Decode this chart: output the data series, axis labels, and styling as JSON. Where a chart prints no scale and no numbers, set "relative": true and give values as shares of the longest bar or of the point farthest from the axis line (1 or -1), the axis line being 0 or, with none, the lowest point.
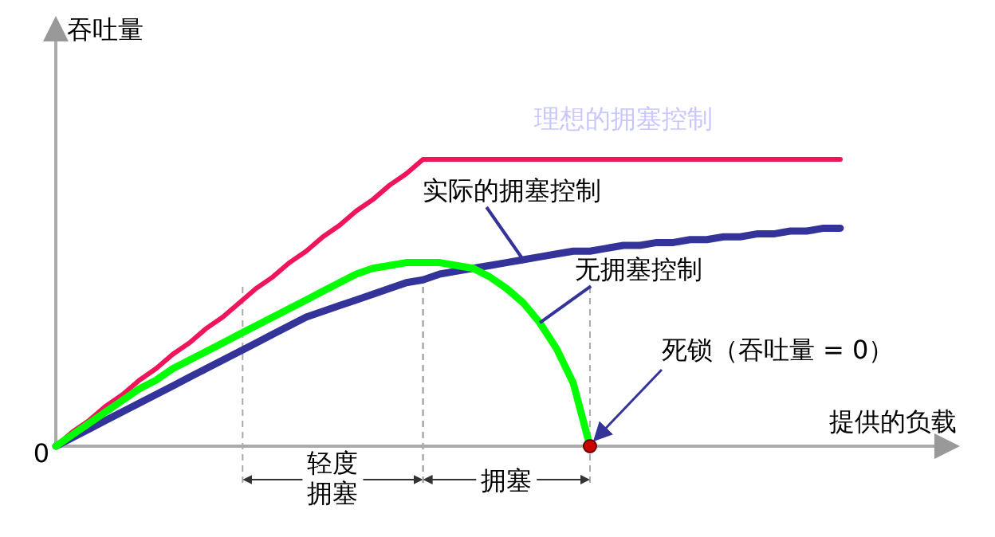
{
  "chart_data": {
    "type": "line",
    "relative": true,
    "xlabel": "提供的负载",
    "ylabel": "吞吐量",
    "categories": [
      null,
      null,
      null,
      null,
      null,
      null,
      null,
      null,
      null,
      null,
      null,
      null,
      null,
      null,
      null,
      null,
      null,
      null,
      null,
      null,
      null,
      null,
      null,
      null,
      null,
      null,
      null,
      null,
      null,
      null,
      null,
      null,
      null,
      null,
      null,
      null,
      null,
      null,
      null,
      null,
      null,
      null,
      null,
      null,
      null,
      null,
      null,
      null
    ],
    "series": [
      {
        "name": "理想的拥塞控制",
        "color": "#f0145a",
        "values": [
          0,
          0.05,
          0.09,
          0.14,
          0.18,
          0.23,
          0.27,
          0.32,
          0.36,
          0.41,
          0.45,
          0.5,
          0.55,
          0.59,
          0.64,
          0.68,
          0.73,
          0.77,
          0.82,
          0.86,
          0.91,
          0.95,
          1,
          1,
          1,
          1,
          1,
          1,
          1,
          1,
          1,
          1,
          1,
          1,
          1,
          1,
          1,
          1,
          1,
          1,
          1,
          1,
          1,
          1,
          1,
          1,
          1,
          1
        ]
      },
      {
        "name": "实际的拥塞控制",
        "color": "#333399",
        "values": [
          0,
          0.03,
          0.06,
          0.09,
          0.12,
          0.15,
          0.18,
          0.21,
          0.24,
          0.27,
          0.3,
          0.33,
          0.36,
          0.39,
          0.42,
          0.45,
          0.47,
          0.49,
          0.51,
          0.53,
          0.55,
          0.57,
          0.58,
          0.6,
          0.61,
          0.62,
          0.63,
          0.64,
          0.65,
          0.66,
          0.67,
          0.68,
          0.68,
          0.69,
          0.7,
          0.7,
          0.71,
          0.71,
          0.72,
          0.72,
          0.73,
          0.73,
          0.74,
          0.74,
          0.75,
          0.75,
          0.76,
          0.76
        ]
      },
      {
        "name": "无拥塞控制",
        "color": "#00ff00",
        "values": [
          0,
          0.04,
          0.08,
          0.12,
          0.16,
          0.2,
          0.23,
          0.27,
          0.3,
          0.33,
          0.36,
          0.39,
          0.42,
          0.45,
          0.48,
          0.51,
          0.54,
          0.57,
          0.6,
          0.62,
          0.63,
          0.64,
          0.64,
          0.64,
          0.63,
          0.62,
          0.59,
          0.55,
          0.5,
          0.43,
          0.34,
          0.22,
          0,
          null,
          null,
          null,
          null,
          null,
          null,
          null,
          null,
          null,
          null,
          null,
          null,
          null,
          null,
          null
        ]
      }
    ],
    "annotations": [
      "0",
      "死锁（吞吐量 = 0）",
      "轻度拥塞",
      "拥塞"
    ]
  }
}
